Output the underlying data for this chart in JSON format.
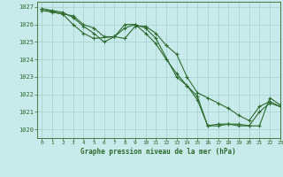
{
  "title": "Graphe pression niveau de la mer (hPa)",
  "bg_color": "#c8eaea",
  "grid_color": "#aad4d4",
  "line_color": "#2d6b2d",
  "xlim": [
    -0.5,
    23
  ],
  "ylim": [
    1019.5,
    1027.3
  ],
  "yticks": [
    1020,
    1021,
    1022,
    1023,
    1024,
    1025,
    1026,
    1027
  ],
  "xticks": [
    0,
    1,
    2,
    3,
    4,
    5,
    6,
    7,
    8,
    9,
    10,
    11,
    12,
    13,
    14,
    15,
    16,
    17,
    18,
    19,
    20,
    21,
    22,
    23
  ],
  "series": [
    {
      "x": [
        0,
        1,
        2,
        3,
        4,
        5,
        6,
        7,
        8,
        9,
        10,
        11,
        12,
        13,
        14,
        15,
        16,
        17,
        18,
        19,
        20,
        21,
        22,
        23
      ],
      "y": [
        1026.8,
        1026.7,
        1026.6,
        1026.5,
        1026.0,
        1025.8,
        1025.3,
        1025.3,
        1025.2,
        1025.9,
        1025.9,
        1025.5,
        1024.8,
        1024.3,
        1023.0,
        1022.1,
        1021.8,
        1021.5,
        1021.2,
        1020.8,
        1020.5,
        1021.3,
        1021.6,
        1021.3
      ]
    },
    {
      "x": [
        0,
        1,
        2,
        3,
        4,
        5,
        6,
        7,
        8,
        9,
        10,
        11,
        12,
        13,
        14,
        15,
        16,
        17,
        18,
        19,
        20,
        21,
        22,
        23
      ],
      "y": [
        1026.9,
        1026.8,
        1026.7,
        1026.4,
        1025.9,
        1025.5,
        1025.0,
        1025.3,
        1026.0,
        1026.0,
        1025.5,
        1024.9,
        1024.0,
        1023.2,
        1022.5,
        1021.7,
        1020.2,
        1020.2,
        1020.3,
        1020.2,
        1020.2,
        1021.0,
        1021.5,
        1021.3
      ]
    },
    {
      "x": [
        0,
        2,
        3,
        4,
        5,
        7,
        8,
        9,
        10,
        11,
        13,
        14,
        15,
        16,
        17,
        18,
        19,
        20,
        21,
        22,
        23
      ],
      "y": [
        1026.9,
        1026.6,
        1026.0,
        1025.5,
        1025.2,
        1025.3,
        1025.8,
        1026.0,
        1025.8,
        1025.2,
        1023.0,
        1022.5,
        1021.9,
        1020.2,
        1020.3,
        1020.3,
        1020.3,
        1020.2,
        1020.2,
        1021.8,
        1021.4
      ]
    }
  ]
}
